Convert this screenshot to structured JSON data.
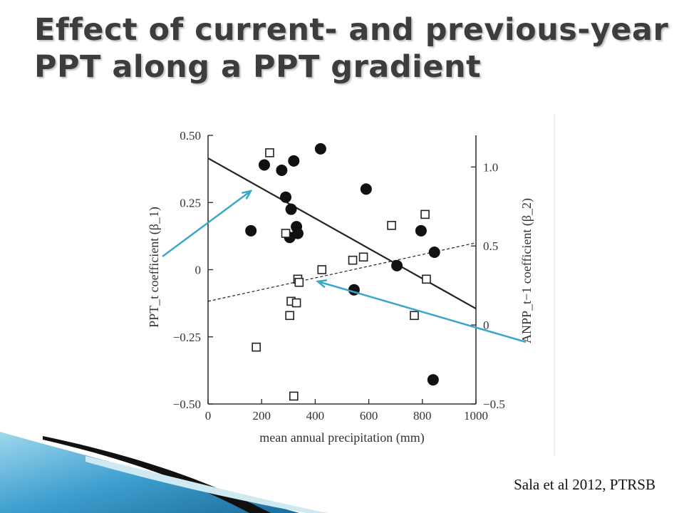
{
  "slide": {
    "title": "Effect of current- and previous-year\nPPT along a PPT gradient",
    "citation": "Sala et al 2012, PTRSB"
  },
  "colors": {
    "title": "#3d3d3d",
    "axis": "#333333",
    "filled_marker": "#111111",
    "annotation_arrow": "#3aa7c9",
    "swoosh_light": "#9fd8ee",
    "swoosh_dark": "#1a6d9a"
  },
  "chart_data": {
    "type": "scatter",
    "xlabel": "mean annual precipitation (mm)",
    "ylabel_left": "PPT_t coefficient (β_1)",
    "ylabel_right": "ANPP_t−1 coefficient (β_2)",
    "xlim": [
      0,
      1000
    ],
    "ylim_left": [
      -0.5,
      0.5
    ],
    "ylim_right": [
      -0.5,
      1.2
    ],
    "x_ticks": [
      "0",
      "200",
      "400",
      "600",
      "800",
      "1000"
    ],
    "y_left_ticks": [
      "0.50",
      "0.25",
      "0",
      "−0.25",
      "−0.50"
    ],
    "y_right_ticks": [
      "1.0",
      "0.5",
      "0",
      "−0.5"
    ],
    "grid": false,
    "series": [
      {
        "marker": "filled-circle",
        "axis": "left",
        "points": [
          [
            160,
            0.145
          ],
          [
            210,
            0.39
          ],
          [
            275,
            0.37
          ],
          [
            290,
            0.27
          ],
          [
            310,
            0.225
          ],
          [
            320,
            0.405
          ],
          [
            330,
            0.16
          ],
          [
            335,
            0.135
          ],
          [
            305,
            0.12
          ],
          [
            420,
            0.45
          ],
          [
            590,
            0.3
          ],
          [
            545,
            -0.075
          ],
          [
            705,
            0.015
          ],
          [
            795,
            0.145
          ],
          [
            845,
            0.065
          ],
          [
            840,
            -0.41
          ]
        ]
      },
      {
        "marker": "open-square",
        "axis": "right",
        "points": [
          [
            230,
            1.09
          ],
          [
            290,
            0.58
          ],
          [
            335,
            0.29
          ],
          [
            340,
            0.27
          ],
          [
            425,
            0.35
          ],
          [
            540,
            0.41
          ],
          [
            580,
            0.43
          ],
          [
            685,
            0.63
          ],
          [
            810,
            0.7
          ],
          [
            815,
            0.29
          ],
          [
            310,
            0.15
          ],
          [
            330,
            0.14
          ],
          [
            305,
            0.06
          ],
          [
            770,
            0.06
          ],
          [
            180,
            -0.14
          ],
          [
            320,
            -0.45
          ]
        ]
      }
    ],
    "fit_lines": [
      {
        "style": "solid",
        "axis": "left",
        "x": [
          0,
          1000
        ],
        "y": [
          0.415,
          -0.145
        ]
      },
      {
        "style": "dashed",
        "axis": "right",
        "x": [
          0,
          1000
        ],
        "y": [
          0.15,
          0.52
        ]
      }
    ],
    "annotations": [
      {
        "type": "arrow",
        "target": "solid regression line"
      },
      {
        "type": "arrow",
        "target": "dashed regression line"
      }
    ]
  }
}
